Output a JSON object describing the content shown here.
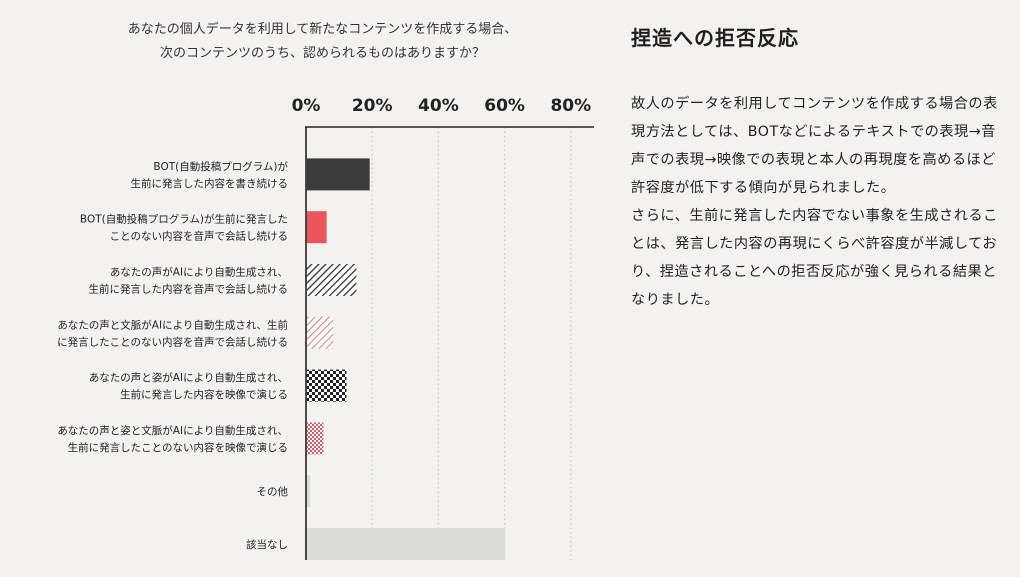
{
  "chart_data": {
    "type": "bar",
    "orientation": "horizontal",
    "title_lines": [
      "あなたの個人データを利用して新たなコンテンツを作成する場合、",
      "次のコンテンツのうち、認められるものはありますか？"
    ],
    "categories": [
      [
        "BOT(自動投稿プログラム)が",
        "生前に発言した内容を書き続ける"
      ],
      [
        "BOT(自動投稿プログラム)が生前に発言した",
        "ことのない内容を音声で会話し続ける"
      ],
      [
        "あなたの声がAIにより自動生成され、",
        "生前に発言した内容を音声で会話し続ける"
      ],
      [
        "あなたの声と文脈がAIにより自動生成され、生前",
        "に発言したことのない内容を音声で会話し続ける"
      ],
      [
        "あなたの声と姿がAIにより自動生成され、",
        "生前に発言した内容を映像で演じる"
      ],
      [
        "あなたの声と姿と文脈がAIにより自動生成され、",
        "生前に発言したことのない内容を映像で演じる"
      ],
      [
        "その他"
      ],
      [
        "該当なし"
      ]
    ],
    "values": [
      19,
      6,
      15,
      8,
      12,
      5,
      1,
      60
    ],
    "bar_styles": [
      "solid-dark",
      "solid-red",
      "hatch-dark",
      "hatch-red",
      "check-dark",
      "check-red",
      "solid-light",
      "solid-light"
    ],
    "xlim": [
      0,
      87
    ],
    "ticks": [
      0,
      20,
      40,
      60,
      80
    ],
    "tick_labels": [
      "0%",
      "20%",
      "40%",
      "60%",
      "80%"
    ],
    "grid": true,
    "colors": {
      "dark": "#3b3b3b",
      "red": "#e8555d",
      "light": "#dcdcd8",
      "grid": "#c9c9c4",
      "axis": "#222222"
    }
  },
  "side": {
    "title": "捏造への拒否反応",
    "paragraphs": [
      "故人のデータを利用してコンテンツを作成する場合の表現方法としては、BOTなどによるテキストでの表現→音声での表現→映像での表現と本人の再現度を高めるほど許容度が低下する傾向が見られました。",
      "さらに、生前に発言した内容でない事象を生成されることは、発言した内容の再現にくらべ許容度が半減しており、捏造されることへの拒否反応が強く見られる結果となりました。"
    ]
  }
}
